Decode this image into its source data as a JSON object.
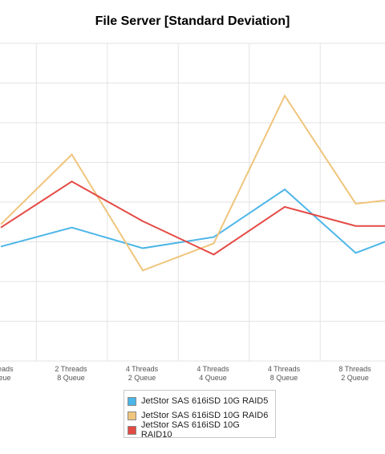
{
  "chart_data": {
    "type": "line",
    "title": "File Server [Standard Deviation]",
    "categories": [
      [
        "Threads",
        "Queue"
      ],
      [
        "2 Threads",
        "8 Queue"
      ],
      [
        "4 Threads",
        "2 Queue"
      ],
      [
        "4 Threads",
        "4 Queue"
      ],
      [
        "4 Threads",
        "8 Queue"
      ],
      [
        "8 Threads",
        "2 Queue"
      ],
      [
        ""
      ]
    ],
    "series": [
      {
        "name": "JetStor SAS 616iSD 10G RAID5",
        "color": "#4db6e8",
        "values": [
          3.6,
          4.2,
          3.55,
          3.9,
          5.4,
          3.4,
          4.25
        ]
      },
      {
        "name": "JetStor SAS 616iSD 10G RAID6",
        "color": "#efc57c",
        "values": [
          4.3,
          6.5,
          2.85,
          3.7,
          8.35,
          4.95,
          5.2
        ]
      },
      {
        "name": "JetStor SAS 616iSD 10G RAID10",
        "color": "#e44a44",
        "values": [
          4.2,
          5.65,
          4.4,
          3.35,
          4.85,
          4.25,
          4.25
        ]
      }
    ],
    "ylim": [
      0,
      10
    ],
    "grid": true,
    "legend_position": "bottom"
  }
}
